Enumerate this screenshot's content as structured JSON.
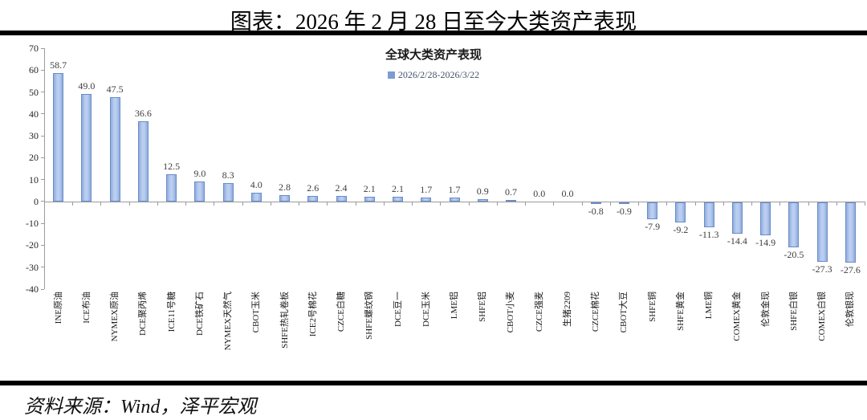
{
  "page": {
    "title": "图表：2026 年 2 月 28 日至今大类资产表现",
    "source": "资料来源：Wind，泽平宏观"
  },
  "chart_data": {
    "type": "bar",
    "title": "全球大类资产表现",
    "legend": [
      "2026/2/28-2026/3/22"
    ],
    "legend_position": "top-center",
    "categories": [
      "INE原油",
      "ICE布油",
      "NYMEX原油",
      "DCE聚丙烯",
      "ICE11号糖",
      "DCE铁矿石",
      "NYMEX天然气",
      "CBOT玉米",
      "SHFE热轧卷板",
      "ICE2号棉花",
      "CZCE白糖",
      "SHFE螺纹钢",
      "DCE豆一",
      "DCE玉米",
      "LME铝",
      "SHFE铝",
      "CBOT小麦",
      "CZCE强麦",
      "生猪2209",
      "CZCE棉花",
      "CBOT大豆",
      "SHFE铜",
      "SHFE黄金",
      "LME铜",
      "COMEX黄金",
      "伦敦金现",
      "SHFE白银",
      "COMEX白银",
      "伦敦银现"
    ],
    "values": [
      58.7,
      49.0,
      47.5,
      36.6,
      12.5,
      9.0,
      8.3,
      4.0,
      2.8,
      2.6,
      2.4,
      2.1,
      2.1,
      1.7,
      1.7,
      0.9,
      0.7,
      0.0,
      0.0,
      -0.8,
      -0.9,
      -7.9,
      -9.2,
      -11.3,
      -14.4,
      -14.9,
      -20.5,
      -27.3,
      -27.6
    ],
    "xlabel": "",
    "ylabel": "",
    "ylim": [
      -40,
      70
    ],
    "ytick_step": 10,
    "grid": false,
    "value_label_decimals": 1,
    "colors": {
      "bar_fill_light": "#BACEF0",
      "bar_fill_dark": "#8FACDE",
      "bar_border": "#6A8CC8",
      "legend_marker": "#7D9CD2",
      "axis": "#9B9B9B"
    }
  }
}
